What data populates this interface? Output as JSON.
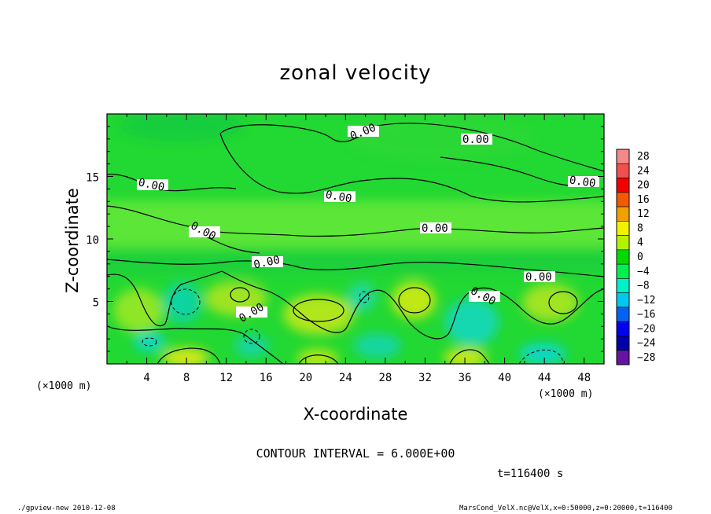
{
  "chart_data": {
    "type": "heatmap",
    "title": "zonal velocity",
    "xlabel": "X-coordinate",
    "ylabel": "Z-coordinate",
    "x_unit": "(×1000 m)",
    "y_unit": "(×1000 m)",
    "xlim": [
      0,
      50
    ],
    "ylim": [
      0,
      20
    ],
    "x_ticks": [
      "4",
      "8",
      "12",
      "16",
      "20",
      "24",
      "28",
      "32",
      "36",
      "40",
      "44",
      "48"
    ],
    "y_ticks": [
      "5",
      "10",
      "15"
    ],
    "colorbar": {
      "labels": [
        "28",
        "24",
        "20",
        "16",
        "12",
        "8",
        "4",
        "0",
        "−4",
        "−8",
        "−12",
        "−16",
        "−20",
        "−24",
        "−28"
      ],
      "colors": [
        "#f28a8a",
        "#f25050",
        "#f20000",
        "#f25a00",
        "#f2a000",
        "#f2f200",
        "#b4f200",
        "#00dc00",
        "#00f050",
        "#00f0c8",
        "#00c8f0",
        "#0064f0",
        "#0000f0",
        "#0000aa",
        "#6414a0"
      ]
    },
    "contour_interval": "CONTOUR INTERVAL = 6.000E+00",
    "contour_labels": [
      "0.00",
      "0.00",
      "0.00",
      "0.00",
      "0.00",
      "0.00",
      "0.00",
      "0.00",
      "0.00",
      "0.00",
      "0.00"
    ],
    "time": "t=116400 s",
    "footer_left": "./gpview-new  2010-12-08",
    "footer_right": "MarsCond_VelX.nc@VelX,x=0:50000,z=0:20000,t=116400"
  }
}
